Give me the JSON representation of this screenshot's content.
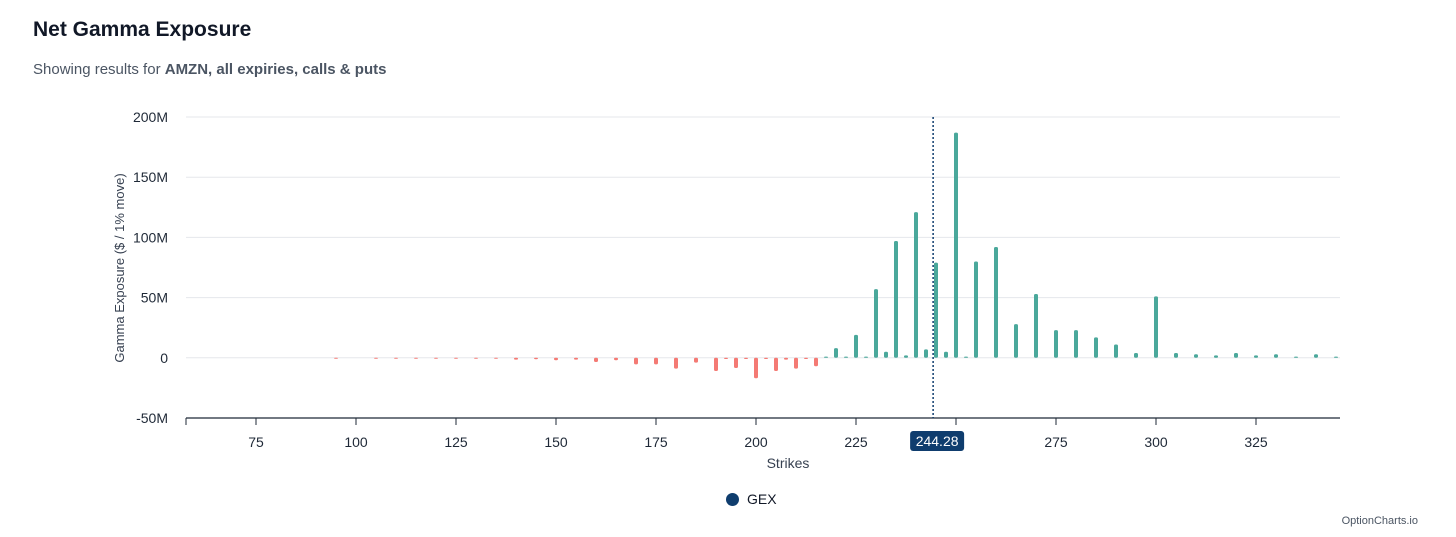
{
  "header": {
    "title": "Net Gamma Exposure",
    "subtitle_prefix": "Showing results for",
    "subtitle_bold": "AMZN, all expiries, calls & puts"
  },
  "footer": {
    "credit": "OptionCharts.io"
  },
  "colors": {
    "positive": "#4aa89b",
    "negative": "#f47a74",
    "marker": "#0f3d6e",
    "grid": "#e5e7eb",
    "axis": "#1f2937"
  },
  "chart_data": {
    "type": "bar",
    "xlabel": "Strikes",
    "ylabel": "Gamma Exposure ($ / 1% move)",
    "xlim": [
      57.5,
      346
    ],
    "ylim": [
      -50,
      200
    ],
    "x_ticks": [
      75,
      100,
      125,
      150,
      175,
      200,
      225,
      250,
      275,
      300,
      325
    ],
    "y_ticks": [
      -50,
      0,
      50,
      100,
      150,
      200
    ],
    "y_tick_labels": [
      "-50M",
      "0",
      "50M",
      "100M",
      "150M",
      "200M"
    ],
    "x_tick_labels": [
      "75",
      "100",
      "125",
      "150",
      "175",
      "200",
      "225",
      "",
      "275",
      "300",
      "325"
    ],
    "y_unit": "M",
    "grid": true,
    "legend_position": "bottom-center",
    "series": [
      {
        "name": "GEX",
        "legend_color": "#0f3d6e",
        "x": [
          95,
          105,
          110,
          115,
          120,
          125,
          130,
          135,
          140,
          145,
          150,
          155,
          160,
          165,
          170,
          175,
          180,
          185,
          190,
          192.5,
          195,
          197.5,
          200,
          202.5,
          205,
          207.5,
          210,
          212.5,
          215,
          217.5,
          220,
          222.5,
          225,
          227.5,
          230,
          232.5,
          235,
          237.5,
          240,
          242.5,
          245,
          247.5,
          250,
          252.5,
          255,
          260,
          265,
          270,
          275,
          280,
          285,
          290,
          295,
          300,
          305,
          310,
          315,
          320,
          325,
          330,
          335,
          340,
          345
        ],
        "values": [
          -0.3,
          -0.5,
          -0.6,
          -0.7,
          -0.6,
          -0.8,
          -0.7,
          -0.8,
          -1.5,
          -1.2,
          -2,
          -1.5,
          -3.5,
          -2,
          -5.5,
          -5.5,
          -9,
          -4,
          -11,
          -1,
          -8.5,
          -1,
          -17,
          -1,
          -11,
          -1.5,
          -9,
          -1,
          -7,
          1,
          8,
          1,
          19,
          1,
          57,
          5,
          97,
          2,
          121,
          7,
          79,
          5,
          187,
          1,
          80,
          92,
          28,
          53,
          23,
          23,
          17,
          11,
          4,
          51,
          4,
          3,
          2,
          4,
          2,
          3,
          1,
          3,
          1
        ]
      }
    ],
    "spot": {
      "label": "244.28",
      "value": 244.28
    }
  }
}
